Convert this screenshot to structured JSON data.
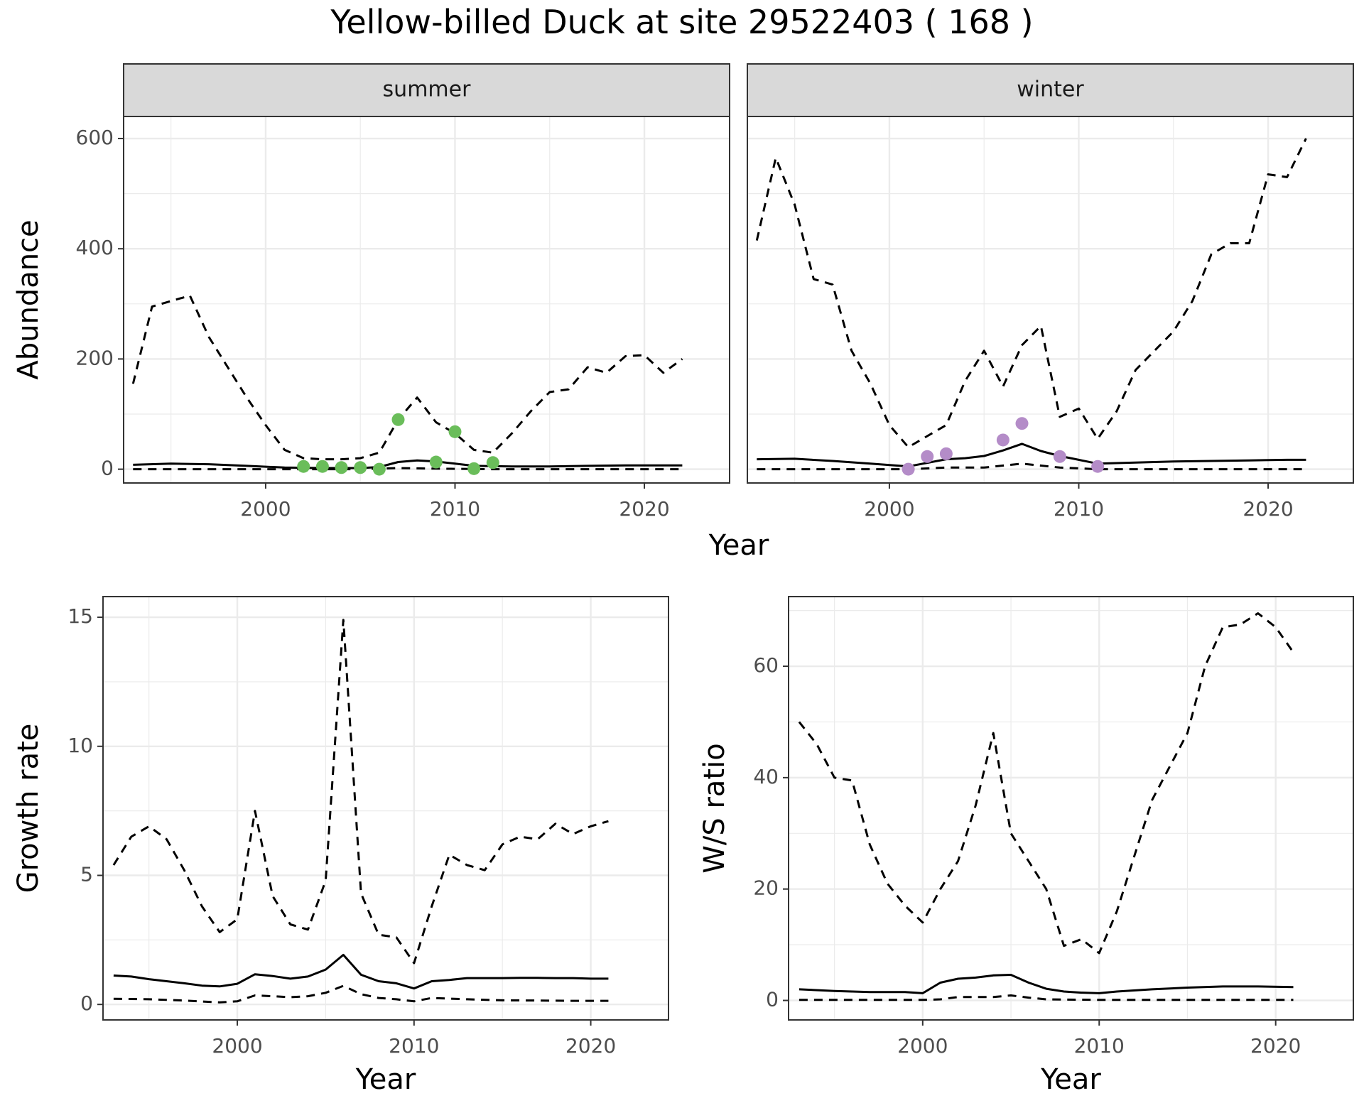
{
  "title": "Yellow-billed Duck at site 29522403 ( 168 )",
  "colors": {
    "summer_points": "#6ABD5A",
    "winter_points": "#B48CC8",
    "strip_bg": "#D9D9D9",
    "grid": "#EBEBEB"
  },
  "chart_data": [
    {
      "type": "line",
      "facets": [
        "summer",
        "winter"
      ],
      "xlabel": "Year",
      "ylabel": "Abundance",
      "xlim": [
        1992.5,
        2024.5
      ],
      "ylim": [
        -25,
        640
      ],
      "xticks": [
        2000,
        2010,
        2020
      ],
      "yticks": [
        0,
        200,
        400,
        600
      ],
      "grid": true,
      "panels": [
        {
          "facet": "summer",
          "series": [
            {
              "role": "estimate",
              "style": "solid",
              "x": [
                1993,
                1995,
                1997,
                1999,
                2001,
                2003,
                2005,
                2006,
                2007,
                2008,
                2009,
                2010,
                2011,
                2013,
                2015,
                2017,
                2019,
                2021,
                2022
              ],
              "y": [
                8,
                10,
                9,
                6,
                3,
                2,
                2,
                4,
                13,
                16,
                14,
                10,
                6,
                5,
                5,
                6,
                7,
                7,
                7
              ]
            },
            {
              "role": "upper",
              "style": "dashed",
              "x": [
                1993,
                1994,
                1995,
                1996,
                1997,
                1998,
                1999,
                2000,
                2001,
                2002,
                2003,
                2004,
                2005,
                2006,
                2007,
                2008,
                2009,
                2010,
                2011,
                2012,
                2013,
                2014,
                2015,
                2016,
                2017,
                2018,
                2019,
                2020,
                2021,
                2022
              ],
              "y": [
                155,
                295,
                305,
                315,
                240,
                185,
                130,
                80,
                35,
                20,
                18,
                18,
                20,
                30,
                90,
                130,
                85,
                65,
                35,
                30,
                65,
                105,
                140,
                145,
                185,
                175,
                205,
                207,
                175,
                200
              ]
            },
            {
              "role": "lower",
              "style": "dashed",
              "x": [
                1993,
                2000,
                2005,
                2007,
                2009,
                2012,
                2016,
                2022
              ],
              "y": [
                0,
                0,
                0,
                2,
                1,
                0,
                0,
                0
              ]
            },
            {
              "role": "observed",
              "style": "points",
              "x": [
                2002,
                2003,
                2004,
                2005,
                2006,
                2007,
                2009,
                2010,
                2011,
                2012
              ],
              "y": [
                5,
                5,
                3,
                3,
                0,
                90,
                13,
                68,
                1,
                12
              ]
            }
          ]
        },
        {
          "facet": "winter",
          "series": [
            {
              "role": "estimate",
              "style": "solid",
              "x": [
                1993,
                1995,
                1997,
                1999,
                2001,
                2003,
                2004,
                2005,
                2006,
                2007,
                2008,
                2009,
                2010,
                2011,
                2013,
                2015,
                2017,
                2019,
                2021,
                2022
              ],
              "y": [
                18,
                19,
                15,
                10,
                5,
                18,
                20,
                24,
                34,
                46,
                33,
                24,
                17,
                10,
                12,
                14,
                15,
                16,
                17,
                17
              ]
            },
            {
              "role": "upper",
              "style": "dashed",
              "x": [
                1993,
                1994,
                1995,
                1996,
                1997,
                1998,
                1999,
                2000,
                2001,
                2002,
                2003,
                2004,
                2005,
                2006,
                2007,
                2008,
                2009,
                2010,
                2011,
                2012,
                2013,
                2014,
                2015,
                2016,
                2017,
                2018,
                2019,
                2020,
                2021,
                2022
              ],
              "y": [
                415,
                565,
                480,
                345,
                335,
                215,
                155,
                80,
                40,
                60,
                80,
                160,
                215,
                150,
                225,
                260,
                95,
                110,
                55,
                105,
                180,
                215,
                250,
                305,
                390,
                410,
                410,
                535,
                530,
                600
              ]
            },
            {
              "role": "lower",
              "style": "dashed",
              "x": [
                1993,
                2000,
                2001,
                2003,
                2005,
                2007,
                2009,
                2011,
                2016,
                2022
              ],
              "y": [
                0,
                0,
                0,
                3,
                3,
                10,
                3,
                0,
                0,
                0
              ]
            },
            {
              "role": "observed",
              "style": "points",
              "x": [
                2001,
                2002,
                2003,
                2006,
                2007,
                2009,
                2011
              ],
              "y": [
                0,
                23,
                28,
                53,
                83,
                23,
                5
              ]
            }
          ]
        }
      ]
    },
    {
      "type": "line",
      "xlabel": "Year",
      "ylabel": "Growth rate",
      "xlim": [
        1992.4,
        2024.4
      ],
      "ylim": [
        -0.6,
        15.8
      ],
      "xticks": [
        2000,
        2010,
        2020
      ],
      "yticks": [
        0,
        5,
        10,
        15
      ],
      "grid": true,
      "series": [
        {
          "role": "estimate",
          "style": "solid",
          "x": [
            1993,
            1994,
            1995,
            1996,
            1997,
            1998,
            1999,
            2000,
            2001,
            2002,
            2003,
            2004,
            2005,
            2006,
            2007,
            2008,
            2009,
            2010,
            2011,
            2012,
            2013,
            2014,
            2015,
            2016,
            2017,
            2018,
            2019,
            2020,
            2021
          ],
          "y": [
            1.12,
            1.08,
            0.98,
            0.9,
            0.82,
            0.73,
            0.7,
            0.8,
            1.17,
            1.1,
            1.0,
            1.08,
            1.35,
            1.92,
            1.15,
            0.9,
            0.82,
            0.62,
            0.9,
            0.95,
            1.02,
            1.02,
            1.02,
            1.03,
            1.03,
            1.02,
            1.02,
            1.0,
            1.0
          ]
        },
        {
          "role": "upper",
          "style": "dashed",
          "x": [
            1993,
            1994,
            1995,
            1996,
            1997,
            1998,
            1999,
            2000,
            2001,
            2002,
            2003,
            2004,
            2005,
            2006,
            2007,
            2008,
            2009,
            2010,
            2011,
            2012,
            2013,
            2014,
            2015,
            2016,
            2017,
            2018,
            2019,
            2020,
            2021
          ],
          "y": [
            5.4,
            6.5,
            6.9,
            6.4,
            5.2,
            3.8,
            2.8,
            3.3,
            7.5,
            4.2,
            3.1,
            2.9,
            4.8,
            14.9,
            4.3,
            2.7,
            2.6,
            1.6,
            3.8,
            5.8,
            5.4,
            5.2,
            6.2,
            6.5,
            6.4,
            7.0,
            6.6,
            6.9,
            7.1
          ]
        },
        {
          "role": "lower",
          "style": "dashed",
          "x": [
            1993,
            1995,
            1997,
            1999,
            2000,
            2001,
            2002,
            2003,
            2004,
            2005,
            2006,
            2007,
            2008,
            2009,
            2010,
            2011,
            2013,
            2015,
            2017,
            2019,
            2021
          ],
          "y": [
            0.22,
            0.2,
            0.15,
            0.08,
            0.12,
            0.35,
            0.32,
            0.28,
            0.32,
            0.45,
            0.72,
            0.4,
            0.25,
            0.2,
            0.12,
            0.25,
            0.2,
            0.16,
            0.15,
            0.14,
            0.14
          ]
        }
      ]
    },
    {
      "type": "line",
      "xlabel": "Year",
      "ylabel": "W/S ratio",
      "xlim": [
        1992.4,
        2024.4
      ],
      "ylim": [
        -3.5,
        72.5
      ],
      "xticks": [
        2000,
        2010,
        2020
      ],
      "yticks": [
        0,
        20,
        40,
        60
      ],
      "grid": true,
      "series": [
        {
          "role": "estimate",
          "style": "solid",
          "x": [
            1993,
            1995,
            1997,
            1999,
            2000,
            2001,
            2002,
            2003,
            2004,
            2005,
            2006,
            2007,
            2008,
            2009,
            2010,
            2011,
            2013,
            2015,
            2017,
            2019,
            2021
          ],
          "y": [
            2.0,
            1.7,
            1.5,
            1.5,
            1.3,
            3.2,
            3.9,
            4.1,
            4.5,
            4.6,
            3.2,
            2.1,
            1.6,
            1.4,
            1.3,
            1.6,
            2.0,
            2.3,
            2.5,
            2.5,
            2.4
          ]
        },
        {
          "role": "upper",
          "style": "dashed",
          "x": [
            1993,
            1994,
            1995,
            1996,
            1997,
            1998,
            1999,
            2000,
            2001,
            2002,
            2003,
            2004,
            2005,
            2006,
            2007,
            2008,
            2009,
            2010,
            2011,
            2012,
            2013,
            2014,
            2015,
            2016,
            2017,
            2018,
            2019,
            2020,
            2021
          ],
          "y": [
            50,
            46,
            40,
            39.5,
            28,
            21,
            17,
            14,
            20,
            25,
            35,
            48,
            30,
            25,
            20,
            9.8,
            11,
            8.5,
            16,
            26,
            36,
            42,
            48,
            60,
            67,
            67.5,
            69.5,
            67,
            62.5
          ]
        },
        {
          "role": "lower",
          "style": "dashed",
          "x": [
            1993,
            1997,
            2000,
            2001,
            2002,
            2004,
            2005,
            2006,
            2007,
            2010,
            2013,
            2017,
            2021
          ],
          "y": [
            0.1,
            0.1,
            0.1,
            0.2,
            0.6,
            0.6,
            0.9,
            0.5,
            0.2,
            0.1,
            0.1,
            0.1,
            0.1
          ]
        }
      ]
    }
  ]
}
